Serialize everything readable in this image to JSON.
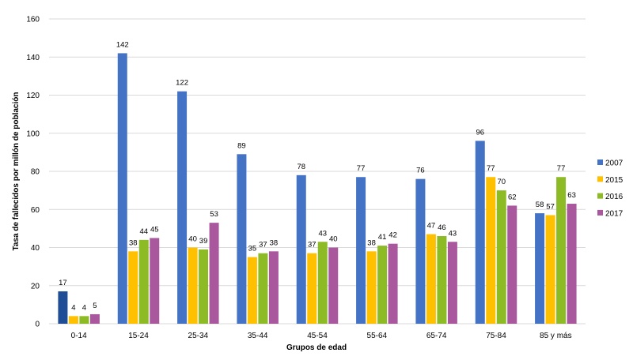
{
  "chart_data": {
    "type": "bar",
    "title": "",
    "xlabel": "Grupos de edad",
    "ylabel": "Tasa de fallecidos por millón de población",
    "ylim": [
      0,
      160
    ],
    "yticks": [
      0,
      20,
      40,
      60,
      80,
      100,
      120,
      140,
      160
    ],
    "grid": true,
    "legend_position": "right",
    "categories": [
      "0-14",
      "15-24",
      "25-34",
      "35-44",
      "45-54",
      "55-64",
      "65-74",
      "75-84",
      "85 y más"
    ],
    "series": [
      {
        "name": "2007",
        "color": "#4472C4",
        "values": [
          17,
          142,
          122,
          89,
          78,
          77,
          76,
          96,
          58
        ]
      },
      {
        "name": "2015",
        "color": "#FFC000",
        "values": [
          4,
          38,
          40,
          35,
          37,
          38,
          47,
          77,
          57
        ]
      },
      {
        "name": "2016",
        "color": "#8DBB25",
        "values": [
          4,
          44,
          39,
          37,
          43,
          41,
          46,
          70,
          77
        ]
      },
      {
        "name": "2017",
        "color": "#A9589E",
        "values": [
          5,
          45,
          53,
          38,
          40,
          42,
          43,
          62,
          63
        ]
      }
    ],
    "highlight_color": "#1F4E96"
  }
}
